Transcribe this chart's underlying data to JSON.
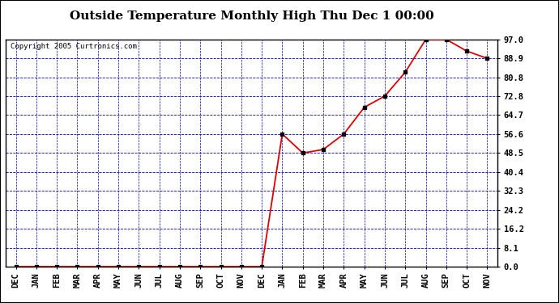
{
  "title": "Outside Temperature Monthly High Thu Dec 1 00:00",
  "copyright": "Copyright 2005 Curtronics.com",
  "x_labels": [
    "DEC",
    "JAN",
    "FEB",
    "MAR",
    "APR",
    "MAY",
    "JUN",
    "JUL",
    "AUG",
    "SEP",
    "OCT",
    "NOV",
    "DEC",
    "JAN",
    "FEB",
    "MAR",
    "APR",
    "MAY",
    "JUN",
    "JUL",
    "AUG",
    "SEP",
    "OCT",
    "NOV"
  ],
  "y_ticks": [
    0.0,
    8.1,
    16.2,
    24.2,
    32.3,
    40.4,
    48.5,
    56.6,
    64.7,
    72.8,
    80.8,
    88.9,
    97.0
  ],
  "y_min": 0.0,
  "y_max": 97.0,
  "data_values": [
    0.0,
    0.0,
    0.0,
    0.0,
    0.0,
    0.0,
    0.0,
    0.0,
    0.0,
    0.0,
    0.0,
    0.0,
    0.0,
    56.6,
    48.5,
    50.0,
    56.6,
    68.0,
    72.8,
    83.0,
    97.0,
    97.0,
    92.0,
    88.9
  ],
  "line_color": "#dd0000",
  "marker_color": "#000000",
  "grid_color_h": "#0000cc",
  "grid_color_v": "#0000aa",
  "bg_color": "#ffffff",
  "border_color": "#000000",
  "title_fontsize": 11,
  "tick_fontsize": 7.5
}
